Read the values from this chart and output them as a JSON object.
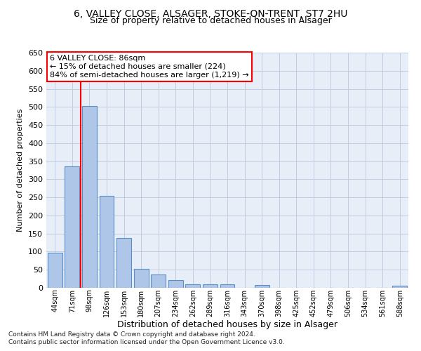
{
  "title1": "6, VALLEY CLOSE, ALSAGER, STOKE-ON-TRENT, ST7 2HU",
  "title2": "Size of property relative to detached houses in Alsager",
  "xlabel": "Distribution of detached houses by size in Alsager",
  "ylabel": "Number of detached properties",
  "categories": [
    "44sqm",
    "71sqm",
    "98sqm",
    "126sqm",
    "153sqm",
    "180sqm",
    "207sqm",
    "234sqm",
    "262sqm",
    "289sqm",
    "316sqm",
    "343sqm",
    "370sqm",
    "398sqm",
    "425sqm",
    "452sqm",
    "479sqm",
    "506sqm",
    "534sqm",
    "561sqm",
    "588sqm"
  ],
  "values": [
    97,
    335,
    503,
    255,
    138,
    53,
    37,
    21,
    10,
    10,
    10,
    0,
    7,
    0,
    0,
    0,
    0,
    0,
    0,
    0,
    6
  ],
  "bar_color": "#aec6e8",
  "bar_edge_color": "#5b8fc9",
  "red_line_x": 1.5,
  "annotation_title": "6 VALLEY CLOSE: 86sqm",
  "annotation_line1": "← 15% of detached houses are smaller (224)",
  "annotation_line2": "84% of semi-detached houses are larger (1,219) →",
  "footer1": "Contains HM Land Registry data © Crown copyright and database right 2024.",
  "footer2": "Contains public sector information licensed under the Open Government Licence v3.0.",
  "ylim": [
    0,
    650
  ],
  "yticks": [
    0,
    50,
    100,
    150,
    200,
    250,
    300,
    350,
    400,
    450,
    500,
    550,
    600,
    650
  ],
  "bg_color": "#e8eef7",
  "grid_color": "#c0cce0",
  "title1_fontsize": 10,
  "title2_fontsize": 9,
  "ylabel_fontsize": 8,
  "xlabel_fontsize": 9,
  "annot_fontsize": 8,
  "footer_fontsize": 6.5
}
